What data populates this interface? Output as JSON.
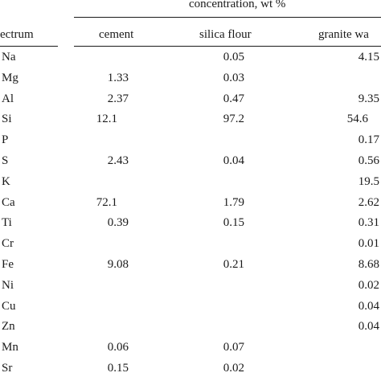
{
  "header": {
    "group_title": "concentration, wt %",
    "spectrum_label": "ectrum",
    "columns": [
      "cement",
      "silica flour",
      "granite wa"
    ]
  },
  "rows": [
    {
      "element": "Na",
      "cement": "",
      "silica": "0.05",
      "granite": "4.15"
    },
    {
      "element": "Mg",
      "cement": "1.33",
      "silica": "0.03",
      "granite": ""
    },
    {
      "element": "Al",
      "cement": "2.37",
      "silica": "0.47",
      "granite": "9.35"
    },
    {
      "element": "Si",
      "cement": "12.1",
      "silica": "97.2",
      "granite": "54.6"
    },
    {
      "element": "P",
      "cement": "",
      "silica": "",
      "granite": "0.17"
    },
    {
      "element": "S",
      "cement": "2.43",
      "silica": "0.04",
      "granite": "0.56"
    },
    {
      "element": "K",
      "cement": "",
      "silica": "",
      "granite": "19.5"
    },
    {
      "element": "Ca",
      "cement": "72.1",
      "silica": "1.79",
      "granite": "2.62"
    },
    {
      "element": "Ti",
      "cement": "0.39",
      "silica": "0.15",
      "granite": "0.31"
    },
    {
      "element": "Cr",
      "cement": "",
      "silica": "",
      "granite": "0.01"
    },
    {
      "element": "Fe",
      "cement": "9.08",
      "silica": "0.21",
      "granite": "8.68"
    },
    {
      "element": "Ni",
      "cement": "",
      "silica": "",
      "granite": "0.02"
    },
    {
      "element": "Cu",
      "cement": "",
      "silica": "",
      "granite": "0.04"
    },
    {
      "element": "Zn",
      "cement": "",
      "silica": "",
      "granite": "0.04"
    },
    {
      "element": "Mn",
      "cement": "0.06",
      "silica": "0.07",
      "granite": ""
    },
    {
      "element": "Sr",
      "cement": "0.15",
      "silica": "0.02",
      "granite": ""
    }
  ]
}
